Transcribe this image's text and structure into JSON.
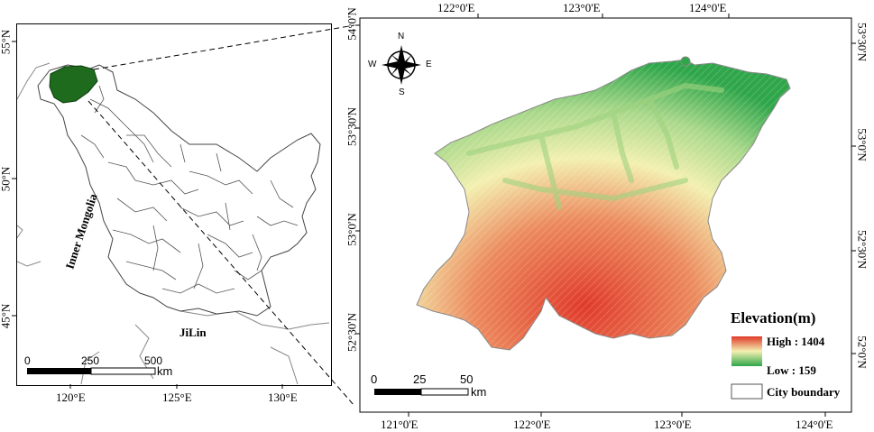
{
  "left_map": {
    "x_ticks": [
      "120°E",
      "125°E",
      "130°E"
    ],
    "y_ticks": [
      "55°N",
      "50°N",
      "45°N"
    ],
    "region_labels": {
      "inner_mongolia": "Inner Mongolia",
      "jilin": "JiLin"
    },
    "scale_bar": {
      "labels": [
        "0",
        "250",
        "500"
      ],
      "unit": "km"
    },
    "highlight_color": "#1e6b1e"
  },
  "right_map": {
    "top_ticks": [
      "122°0'E",
      "123°0'E",
      "124°0'E"
    ],
    "bottom_ticks": [
      "121°0'E",
      "122°0'E",
      "123°0'E",
      "124°0'E"
    ],
    "left_ticks": [
      "54°0'N",
      "53°30'N",
      "53°0'N",
      "52°30'N"
    ],
    "right_ticks": [
      "53°30'N",
      "53°0'N",
      "52°30'N",
      "52°0'N"
    ],
    "compass": {
      "n": "N",
      "s": "S",
      "e": "E",
      "w": "W"
    },
    "scale_bar": {
      "labels": [
        "0",
        "25",
        "50"
      ],
      "unit": "km"
    },
    "legend": {
      "title": "Elevation(m)",
      "high": "High : 1404",
      "low": "Low : 159",
      "boundary": "City boundary",
      "colors": {
        "high": "#e03a2a",
        "mid": "#f3f0b0",
        "low": "#2fa64a"
      }
    }
  }
}
